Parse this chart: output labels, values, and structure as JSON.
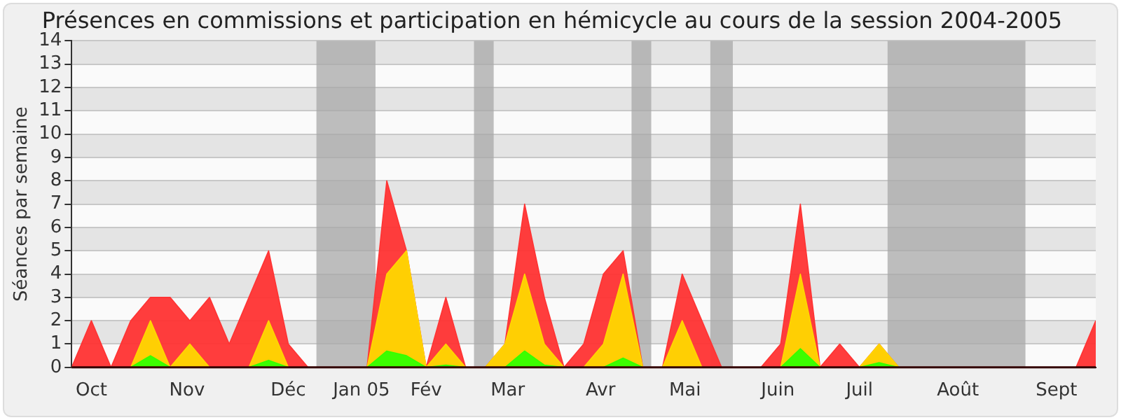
{
  "chart_data": {
    "type": "area",
    "title": "Présences en commissions et participation en hémicycle au cours de la session 2004-2005",
    "ylabel": "Séances par semaine",
    "x": [
      "2004-09-27",
      "2004-10-04",
      "2004-10-11",
      "2004-10-18",
      "2004-10-25",
      "2004-11-01",
      "2004-11-08",
      "2004-11-15",
      "2004-11-22",
      "2004-11-29",
      "2004-12-06",
      "2004-12-13",
      "2004-12-20",
      "2004-12-27",
      "2005-01-03",
      "2005-01-10",
      "2005-01-17",
      "2005-01-24",
      "2005-01-31",
      "2005-02-07",
      "2005-02-14",
      "2005-02-21",
      "2005-02-28",
      "2005-03-07",
      "2005-03-14",
      "2005-03-21",
      "2005-03-28",
      "2005-04-04",
      "2005-04-11",
      "2005-04-18",
      "2005-04-25",
      "2005-05-02",
      "2005-05-09",
      "2005-05-16",
      "2005-05-23",
      "2005-05-30",
      "2005-06-06",
      "2005-06-13",
      "2005-06-20",
      "2005-06-27",
      "2005-07-04",
      "2005-07-11",
      "2005-07-18",
      "2005-07-25",
      "2005-08-01",
      "2005-08-08",
      "2005-08-15",
      "2005-08-22",
      "2005-08-29",
      "2005-09-05",
      "2005-09-12",
      "2005-09-19",
      "2005-09-26"
    ],
    "series": [
      {
        "color": "#ff3333",
        "values": [
          0,
          2,
          0,
          2,
          3,
          3,
          2,
          3,
          1,
          3,
          5,
          1,
          0,
          0,
          0,
          0,
          8,
          5,
          0,
          3,
          0,
          0,
          1,
          7,
          3,
          0,
          1,
          4,
          5,
          0,
          0,
          4,
          2,
          0,
          0,
          0,
          1,
          7,
          0,
          1,
          0,
          1,
          0,
          0,
          0,
          0,
          0,
          0,
          0,
          0,
          0,
          0,
          2
        ]
      },
      {
        "color": "#ffd700",
        "values": [
          0,
          0,
          0,
          0,
          2,
          0,
          1,
          0,
          0,
          0,
          2,
          0,
          0,
          0,
          0,
          0,
          4,
          5,
          0,
          1,
          0,
          0,
          1,
          4,
          1,
          0,
          0,
          1,
          4,
          0,
          0,
          2,
          0,
          0,
          0,
          0,
          0,
          4,
          0,
          0,
          0,
          1,
          0,
          0,
          0,
          0,
          0,
          0,
          0,
          0,
          0,
          0,
          0
        ]
      },
      {
        "color": "#33ff00",
        "values": [
          0,
          0,
          0,
          0,
          0.5,
          0,
          0,
          0,
          0,
          0,
          0.3,
          0,
          0,
          0,
          0,
          0,
          0.7,
          0.5,
          0,
          0.1,
          0,
          0,
          0,
          0.7,
          0.1,
          0,
          0,
          0,
          0.4,
          0,
          0,
          0,
          0,
          0,
          0,
          0,
          0,
          0.8,
          0,
          0,
          0,
          0.2,
          0,
          0,
          0,
          0,
          0,
          0,
          0,
          0,
          0,
          0,
          0
        ]
      }
    ],
    "xlim": [
      "2004-09-27",
      "2005-09-26"
    ],
    "xticks": [
      {
        "value": "2004-10-04",
        "label": "Oct"
      },
      {
        "value": "2004-11-07",
        "label": "Nov"
      },
      {
        "value": "2004-12-13",
        "label": "Déc"
      },
      {
        "value": "2005-01-08",
        "label": "Jan 05"
      },
      {
        "value": "2005-01-31",
        "label": "Fév"
      },
      {
        "value": "2005-03-01",
        "label": "Mar"
      },
      {
        "value": "2005-04-03",
        "label": "Avr"
      },
      {
        "value": "2005-05-03",
        "label": "Mai"
      },
      {
        "value": "2005-06-05",
        "label": "Juin"
      },
      {
        "value": "2005-07-04",
        "label": "Juil"
      },
      {
        "value": "2005-08-08",
        "label": "Août"
      },
      {
        "value": "2005-09-12",
        "label": "Sept"
      }
    ],
    "ylim": [
      0,
      14
    ],
    "yticks": [
      0,
      1,
      2,
      3,
      4,
      5,
      6,
      7,
      8,
      9,
      10,
      11,
      12,
      13,
      14
    ],
    "bands": [
      {
        "axis": "x",
        "from": "2004-12-23",
        "to": "2005-01-13",
        "color": "#a8a8a8"
      },
      {
        "axis": "x",
        "from": "2005-02-17",
        "to": "2005-02-24",
        "color": "#a8a8a8"
      },
      {
        "axis": "x",
        "from": "2005-04-14",
        "to": "2005-04-21",
        "color": "#a8a8a8"
      },
      {
        "axis": "x",
        "from": "2005-05-12",
        "to": "2005-05-20",
        "color": "#a8a8a8"
      },
      {
        "axis": "x",
        "from": "2005-07-14",
        "to": "2005-09-01",
        "color": "#a8a8a8"
      }
    ],
    "grid": "y",
    "legend": false
  }
}
